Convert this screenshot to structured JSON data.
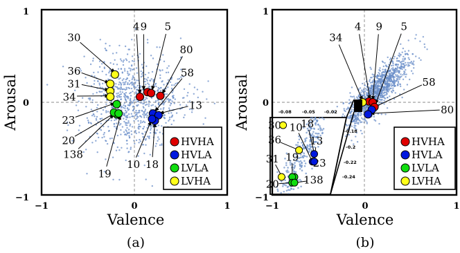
{
  "colors": {
    "HVHA": "#e00000",
    "HVLA": "#0018e0",
    "LVLA": "#10dd10",
    "LVHA": "#ffff1a",
    "scatter": "#6a8ec8"
  },
  "chart_data": [
    {
      "type": "scatter",
      "caption": "(a)",
      "xlabel": "Valence",
      "ylabel": "Arousal",
      "xlim": [
        -1,
        1
      ],
      "ylim": [
        -1,
        1
      ],
      "xticks": [
        "−1",
        "0",
        "1"
      ],
      "yticks": [
        "1",
        "0",
        "−1"
      ],
      "legend": {
        "placement": "bottom-right",
        "entries": [
          "HVHA",
          "HVLA",
          "LVLA",
          "LVHA"
        ]
      },
      "background_scatter": {
        "center": [
          0,
          0
        ],
        "spread": [
          0.27,
          0.27
        ],
        "count": 900
      },
      "points": [
        {
          "label": "4",
          "quadrant": "HVHA",
          "x": 0.06,
          "y": 0.06
        },
        {
          "label": "9",
          "quadrant": "HVHA",
          "x": 0.14,
          "y": 0.11
        },
        {
          "label": "5",
          "quadrant": "HVHA",
          "x": 0.18,
          "y": 0.1
        },
        {
          "label": "80",
          "quadrant": "HVHA",
          "x": 0.28,
          "y": 0.07
        },
        {
          "label": "58",
          "quadrant": "HVLA",
          "x": 0.2,
          "y": -0.12
        },
        {
          "label": "13",
          "quadrant": "HVLA",
          "x": 0.26,
          "y": -0.14
        },
        {
          "label": "18",
          "quadrant": "HVLA",
          "x": 0.22,
          "y": -0.2
        },
        {
          "label": "10",
          "quadrant": "HVLA",
          "x": 0.19,
          "y": -0.18
        },
        {
          "label": "19",
          "quadrant": "LVLA",
          "x": -0.19,
          "y": -0.13
        },
        {
          "label": "138",
          "quadrant": "LVLA",
          "x": -0.22,
          "y": -0.11
        },
        {
          "label": "20",
          "quadrant": "LVLA",
          "x": -0.17,
          "y": -0.12
        },
        {
          "label": "23",
          "quadrant": "LVLA",
          "x": -0.19,
          "y": -0.02
        },
        {
          "label": "36",
          "quadrant": "LVHA",
          "x": -0.26,
          "y": 0.2
        },
        {
          "label": "30",
          "quadrant": "LVHA",
          "x": -0.21,
          "y": 0.3
        },
        {
          "label": "31",
          "quadrant": "LVHA",
          "x": -0.26,
          "y": 0.12
        },
        {
          "label": "34",
          "quadrant": "LVHA",
          "x": -0.26,
          "y": 0.06
        }
      ],
      "annotations": [
        {
          "label": "30",
          "tx": -0.65,
          "ty": 0.66,
          "px": -0.21,
          "py": 0.32
        },
        {
          "label": "36",
          "tx": -0.65,
          "ty": 0.3,
          "px": -0.27,
          "py": 0.21
        },
        {
          "label": "31",
          "tx": -0.65,
          "ty": 0.16,
          "px": -0.27,
          "py": 0.13
        },
        {
          "label": "34",
          "tx": -0.7,
          "ty": 0.02,
          "px": -0.27,
          "py": 0.07
        },
        {
          "label": "23",
          "tx": -0.71,
          "ty": -0.23,
          "px": -0.21,
          "py": -0.01
        },
        {
          "label": "20",
          "tx": -0.71,
          "ty": -0.45,
          "px": -0.2,
          "py": -0.11
        },
        {
          "label": "138",
          "tx": -0.66,
          "ty": -0.6,
          "px": -0.22,
          "py": -0.13
        },
        {
          "label": "19",
          "tx": -0.32,
          "ty": -0.81,
          "px": -0.15,
          "py": -0.14
        },
        {
          "label": "10",
          "tx": -0.01,
          "ty": -0.71,
          "px": 0.18,
          "py": -0.2
        },
        {
          "label": "18",
          "tx": 0.19,
          "ty": -0.71,
          "px": 0.22,
          "py": -0.22
        },
        {
          "label": "13",
          "tx": 0.66,
          "ty": -0.07,
          "px": 0.27,
          "py": -0.12
        },
        {
          "label": "58",
          "tx": 0.57,
          "ty": 0.28,
          "px": 0.22,
          "py": -0.1
        },
        {
          "label": "80",
          "tx": 0.56,
          "ty": 0.53,
          "px": 0.3,
          "py": 0.09
        },
        {
          "label": "5",
          "tx": 0.36,
          "ty": 0.78,
          "px": 0.19,
          "py": 0.13
        },
        {
          "label": "9",
          "tx": 0.1,
          "ty": 0.78,
          "px": 0.1,
          "py": 0.13
        },
        {
          "label": "4",
          "tx": 0.02,
          "ty": 0.78,
          "px": 0.06,
          "py": 0.09
        }
      ]
    },
    {
      "type": "scatter",
      "caption": "(b)",
      "xlabel": "Valence",
      "ylabel": "Arousal",
      "xlim": [
        -1,
        1
      ],
      "ylim": [
        -1,
        1
      ],
      "xticks": [
        "−1",
        "0",
        "1"
      ],
      "yticks": [
        "1",
        "0",
        "−1"
      ],
      "legend": {
        "placement": "bottom-right",
        "entries": [
          "HVHA",
          "HVLA",
          "LVLA",
          "LVHA"
        ]
      },
      "background_scatter": {
        "center": [
          0.12,
          0.1
        ],
        "spread": [
          0.18,
          0.2
        ],
        "correlation": 0.85,
        "count": 1200
      },
      "points": [
        {
          "label": "4",
          "quadrant": "HVHA",
          "x": 0.05,
          "y": 0.01
        },
        {
          "label": "9",
          "quadrant": "HVHA",
          "x": 0.09,
          "y": 0.0
        },
        {
          "label": "5",
          "quadrant": "HVHA",
          "x": 0.11,
          "y": -0.05
        },
        {
          "label": "58",
          "quadrant": "HVLA",
          "x": 0.08,
          "y": -0.08
        },
        {
          "label": "80",
          "quadrant": "HVLA",
          "x": 0.04,
          "y": -0.13
        },
        {
          "label": "34",
          "quadrant": "LVHA",
          "x": -0.02,
          "y": 0.0
        }
      ],
      "annotations": [
        {
          "label": "34",
          "tx": -0.31,
          "ty": 0.66,
          "px": -0.02,
          "py": 0.02
        },
        {
          "label": "4",
          "tx": -0.07,
          "ty": 0.78,
          "px": 0.06,
          "py": 0.03
        },
        {
          "label": "9",
          "tx": 0.16,
          "ty": 0.78,
          "px": 0.09,
          "py": 0.02
        },
        {
          "label": "5",
          "tx": 0.43,
          "ty": 0.78,
          "px": 0.12,
          "py": -0.02
        },
        {
          "label": "58",
          "tx": 0.7,
          "ty": 0.18,
          "px": 0.09,
          "py": -0.06
        },
        {
          "label": "80",
          "tx": 0.9,
          "ty": -0.12,
          "px": 0.06,
          "py": -0.12
        }
      ],
      "inset": {
        "xticks": [
          "-0.08",
          "-0.05",
          "-0.02"
        ],
        "yticks": [
          "-0.18",
          "-0.2",
          "-0.22",
          "-0.24"
        ],
        "source_region": {
          "x": [
            -0.05,
            0.02
          ],
          "y": [
            -0.19,
            -0.02
          ]
        },
        "points": [
          {
            "label": "30",
            "quadrant": "LVHA",
            "x": -0.085,
            "y": -0.178
          },
          {
            "label": "36",
            "quadrant": "LVHA",
            "x": -0.064,
            "y": -0.204
          },
          {
            "label": "31",
            "quadrant": "LVHA",
            "x": -0.087,
            "y": -0.232
          },
          {
            "label": "18",
            "quadrant": "HVLA",
            "x": -0.044,
            "y": -0.208
          },
          {
            "label": "10",
            "quadrant": "HVLA",
            "x": -0.046,
            "y": -0.216
          },
          {
            "label": "13",
            "quadrant": "HVLA",
            "x": -0.044,
            "y": -0.216
          },
          {
            "label": "23",
            "quadrant": "LVLA",
            "x": -0.07,
            "y": -0.232
          },
          {
            "label": "19",
            "quadrant": "LVLA",
            "x": -0.073,
            "y": -0.232
          },
          {
            "label": "20",
            "quadrant": "LVLA",
            "x": -0.073,
            "y": -0.238
          },
          {
            "label": "138",
            "quadrant": "LVLA",
            "x": -0.07,
            "y": -0.238
          }
        ],
        "annotations": [
          {
            "label": "30",
            "tx": -0.096,
            "ty": -0.182,
            "px": -0.085,
            "py": -0.178
          },
          {
            "label": "18",
            "tx": -0.053,
            "ty": -0.18,
            "px": -0.044,
            "py": -0.207
          },
          {
            "label": "10",
            "tx": -0.068,
            "ty": -0.184,
            "px": -0.047,
            "py": -0.215
          },
          {
            "label": "36",
            "tx": -0.096,
            "ty": -0.197,
            "px": -0.064,
            "py": -0.204
          },
          {
            "label": "19",
            "tx": -0.073,
            "ty": -0.215,
            "px": -0.073,
            "py": -0.231
          },
          {
            "label": "13",
            "tx": -0.041,
            "ty": -0.198,
            "px": -0.044,
            "py": -0.215
          },
          {
            "label": "23",
            "tx": -0.037,
            "ty": -0.221,
            "px": -0.044,
            "py": -0.216
          },
          {
            "label": "31",
            "tx": -0.099,
            "ty": -0.217,
            "px": -0.087,
            "py": -0.231
          },
          {
            "label": "20",
            "tx": -0.099,
            "ty": -0.243,
            "px": -0.073,
            "py": -0.238
          },
          {
            "label": "138",
            "tx": -0.045,
            "ty": -0.239,
            "px": -0.07,
            "py": -0.238
          }
        ]
      }
    }
  ]
}
